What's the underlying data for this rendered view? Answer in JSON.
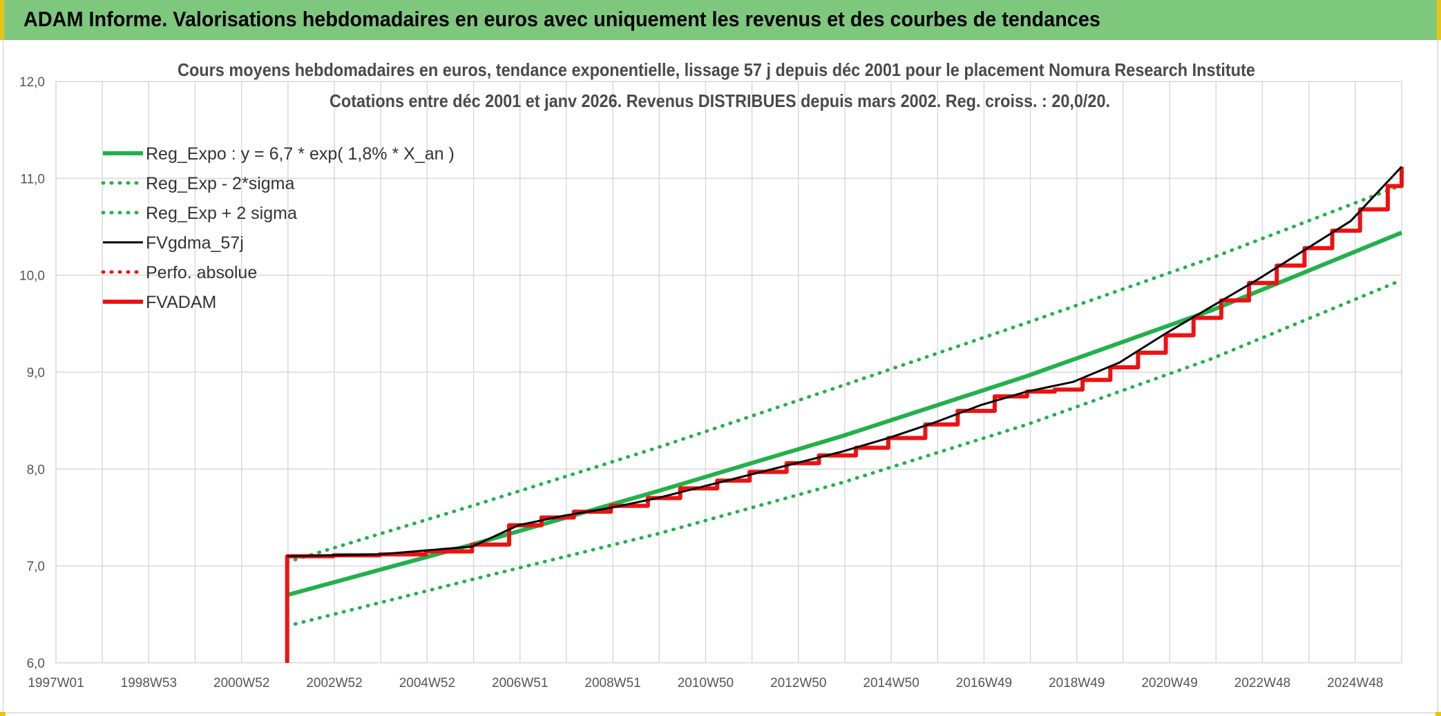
{
  "banner": {
    "title": "ADAM Informe. Valorisations hebdomadaires en euros avec uniquement les revenus et des courbes de tendances"
  },
  "colors": {
    "banner_bg": "#7dc87d",
    "green": "#22b14c",
    "dotted_green": "#22b14c",
    "black": "#000000",
    "red": "#ee1111",
    "grid": "#d9d9d9"
  },
  "chart_data": {
    "type": "line",
    "title": "Cours moyens hebdomadaires en euros, tendance exponentielle, lissage 57 j depuis déc 2001 pour le placement Nomura Research Institute",
    "subtitle": "Cotations entre déc 2001 et janv 2026. Revenus DISTRIBUES depuis mars 2002. Reg. croiss. : 20,0/20.",
    "x_tick_labels": [
      "1997W01",
      "1998W53",
      "2000W52",
      "2002W52",
      "2004W52",
      "2006W51",
      "2008W51",
      "2010W50",
      "2012W50",
      "2014W50",
      "2016W49",
      "2018W49",
      "2020W49",
      "2022W48",
      "2024W48"
    ],
    "y_tick_labels": [
      "6,0",
      "7,0",
      "8,0",
      "9,0",
      "10,0",
      "11,0",
      "12,0"
    ],
    "xlim": [
      1997.0,
      2026.1
    ],
    "ylim": [
      6.0,
      12.0
    ],
    "grid": true,
    "legend_position": "top-left",
    "series": [
      {
        "name": "Reg_Expo : y = 6,7 * exp( 1,8% *  X_an )",
        "color": "#22b14c",
        "style": "solid",
        "x": [
          2002.0,
          2006.0,
          2010.0,
          2014.0,
          2018.0,
          2022.0,
          2026.1
        ],
        "y": [
          6.7,
          7.22,
          7.77,
          8.34,
          8.96,
          9.64,
          10.44
        ]
      },
      {
        "name": "Reg_Exp - 2*sigma",
        "color": "#22b14c",
        "style": "dotted",
        "x": [
          2002.0,
          2006.0,
          2010.0,
          2014.0,
          2018.0,
          2022.0,
          2026.1
        ],
        "y": [
          6.38,
          6.86,
          7.33,
          7.86,
          8.46,
          9.14,
          9.95
        ]
      },
      {
        "name": "Reg_Exp + 2 sigma",
        "color": "#22b14c",
        "style": "dotted",
        "x": [
          2002.0,
          2006.0,
          2010.0,
          2014.0,
          2018.0,
          2022.0,
          2026.1
        ],
        "y": [
          7.04,
          7.62,
          8.22,
          8.86,
          9.51,
          10.18,
          10.93
        ]
      },
      {
        "name": "FVgdma_57j",
        "color": "#000000",
        "style": "solid",
        "x": [
          2002.0,
          2004.0,
          2006.0,
          2007.0,
          2008.0,
          2009.0,
          2010.0,
          2011.0,
          2012.0,
          2013.0,
          2014.0,
          2015.0,
          2016.0,
          2017.0,
          2018.0,
          2019.0,
          2020.0,
          2021.0,
          2022.0,
          2023.0,
          2024.0,
          2025.0,
          2026.1
        ],
        "y": [
          7.1,
          7.12,
          7.2,
          7.42,
          7.52,
          7.6,
          7.7,
          7.82,
          7.94,
          8.06,
          8.18,
          8.32,
          8.48,
          8.66,
          8.8,
          8.9,
          9.1,
          9.4,
          9.68,
          9.96,
          10.26,
          10.56,
          11.12
        ]
      },
      {
        "name": "Perfo. absolue",
        "color": "#ee1111",
        "style": "dotted",
        "x": [],
        "y": []
      },
      {
        "name": "FVADAM",
        "color": "#ee1111",
        "style": "solid",
        "x": [
          2002.0,
          2002.0,
          2003.0,
          2004.0,
          2005.0,
          2006.0,
          2006.8,
          2007.5,
          2008.2,
          2009.0,
          2009.8,
          2010.5,
          2011.3,
          2012.0,
          2012.8,
          2013.5,
          2014.3,
          2015.0,
          2015.8,
          2016.5,
          2017.3,
          2018.0,
          2018.6,
          2019.2,
          2019.8,
          2020.4,
          2021.0,
          2021.6,
          2022.2,
          2022.8,
          2023.4,
          2024.0,
          2024.6,
          2025.2,
          2025.8,
          2026.1
        ],
        "y": [
          6.0,
          7.1,
          7.11,
          7.12,
          7.15,
          7.22,
          7.42,
          7.5,
          7.56,
          7.62,
          7.7,
          7.8,
          7.88,
          7.97,
          8.06,
          8.14,
          8.22,
          8.32,
          8.46,
          8.6,
          8.75,
          8.8,
          8.82,
          8.92,
          9.05,
          9.2,
          9.38,
          9.56,
          9.74,
          9.92,
          10.1,
          10.28,
          10.46,
          10.68,
          10.92,
          11.12
        ]
      }
    ]
  }
}
